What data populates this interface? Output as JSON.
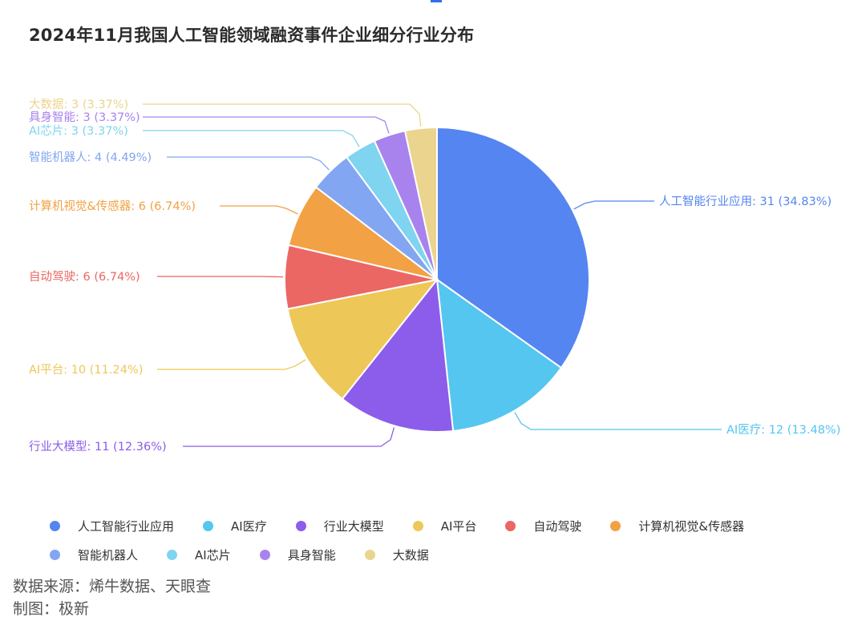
{
  "chart_data": {
    "type": "pie",
    "title": "2024年11月我国人工智能领域融资事件企业细分行业分布",
    "slices": [
      {
        "name": "人工智能行业应用",
        "value": 31,
        "percent": "34.83%",
        "color": "#5585F0"
      },
      {
        "name": "AI医疗",
        "value": 12,
        "percent": "13.48%",
        "color": "#54C6F0"
      },
      {
        "name": "行业大模型",
        "value": 11,
        "percent": "12.36%",
        "color": "#8C5CEB"
      },
      {
        "name": "AI平台",
        "value": 10,
        "percent": "11.24%",
        "color": "#EEC759"
      },
      {
        "name": "自动驾驶",
        "value": 6,
        "percent": "6.74%",
        "color": "#EB6763"
      },
      {
        "name": "计算机视觉&传感器",
        "value": 6,
        "percent": "6.74%",
        "color": "#F2A144"
      },
      {
        "name": "智能机器人",
        "value": 4,
        "percent": "4.49%",
        "color": "#82A6F1"
      },
      {
        "name": "AI芯片",
        "value": 3,
        "percent": "3.37%",
        "color": "#7FD4F0"
      },
      {
        "name": "具身智能",
        "value": 3,
        "percent": "3.37%",
        "color": "#A883EE"
      },
      {
        "name": "大数据",
        "value": 3,
        "percent": "3.37%",
        "color": "#EBD48E"
      }
    ],
    "legend_position": "bottom"
  },
  "footer": {
    "source": "数据来源：烯牛数据、天眼查",
    "author": "制图：极新"
  }
}
